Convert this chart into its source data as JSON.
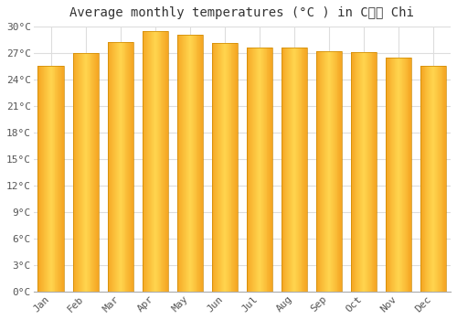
{
  "title": "Average monthly temperatures (°C ) in Củủ Chi",
  "months": [
    "Jan",
    "Feb",
    "Mar",
    "Apr",
    "May",
    "Jun",
    "Jul",
    "Aug",
    "Sep",
    "Oct",
    "Nov",
    "Dec"
  ],
  "temperatures": [
    25.6,
    27.0,
    28.2,
    29.5,
    29.1,
    28.1,
    27.6,
    27.6,
    27.2,
    27.1,
    26.5,
    25.6
  ],
  "bar_color_center": "#FFD54F",
  "bar_color_edge": "#F5A623",
  "ylim": [
    0,
    30
  ],
  "yticks": [
    0,
    3,
    6,
    9,
    12,
    15,
    18,
    21,
    24,
    27,
    30
  ],
  "ytick_labels": [
    "0°C",
    "3°C",
    "6°C",
    "9°C",
    "12°C",
    "15°C",
    "18°C",
    "21°C",
    "24°C",
    "27°C",
    "30°C"
  ],
  "background_color": "#ffffff",
  "plot_bg_color": "#ffffff",
  "grid_color": "#dddddd",
  "title_fontsize": 10,
  "tick_fontsize": 8,
  "bar_edge_color": "#CC8800"
}
